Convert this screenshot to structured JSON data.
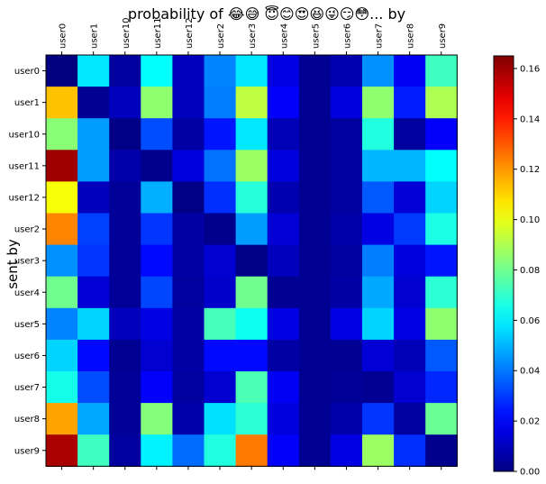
{
  "chart_data": {
    "type": "heatmap",
    "title": "probability of 😂😅 😇😊😍😆😜😏😳... by",
    "ylabel": "sent by",
    "xlabel": "",
    "columns": [
      "user0",
      "user1",
      "user10",
      "user11",
      "user12",
      "user2",
      "user3",
      "user4",
      "user5",
      "user6",
      "user7",
      "user8",
      "user9"
    ],
    "rows": [
      "user0",
      "user1",
      "user10",
      "user11",
      "user12",
      "user2",
      "user3",
      "user4",
      "user5",
      "user6",
      "user7",
      "user8",
      "user9"
    ],
    "values": [
      [
        0.0,
        0.058,
        0.005,
        0.062,
        0.01,
        0.042,
        0.058,
        0.016,
        0.003,
        0.008,
        0.044,
        0.019,
        0.072
      ],
      [
        0.113,
        0.003,
        0.01,
        0.085,
        0.01,
        0.041,
        0.093,
        0.02,
        0.003,
        0.015,
        0.085,
        0.025,
        0.09
      ],
      [
        0.084,
        0.046,
        0.001,
        0.033,
        0.006,
        0.024,
        0.058,
        0.009,
        0.003,
        0.005,
        0.067,
        0.005,
        0.02
      ],
      [
        0.16,
        0.046,
        0.007,
        0.002,
        0.015,
        0.039,
        0.087,
        0.015,
        0.003,
        0.005,
        0.05,
        0.05,
        0.062
      ],
      [
        0.102,
        0.01,
        0.004,
        0.049,
        0.001,
        0.028,
        0.068,
        0.008,
        0.003,
        0.005,
        0.035,
        0.014,
        0.055
      ],
      [
        0.123,
        0.031,
        0.004,
        0.029,
        0.006,
        0.002,
        0.046,
        0.014,
        0.003,
        0.007,
        0.016,
        0.03,
        0.066
      ],
      [
        0.044,
        0.029,
        0.004,
        0.022,
        0.006,
        0.013,
        0.001,
        0.01,
        0.003,
        0.005,
        0.041,
        0.015,
        0.024
      ],
      [
        0.08,
        0.014,
        0.004,
        0.032,
        0.005,
        0.012,
        0.08,
        0.003,
        0.003,
        0.006,
        0.048,
        0.013,
        0.069
      ],
      [
        0.042,
        0.055,
        0.01,
        0.016,
        0.006,
        0.073,
        0.064,
        0.016,
        0.003,
        0.016,
        0.055,
        0.016,
        0.085
      ],
      [
        0.055,
        0.022,
        0.003,
        0.013,
        0.006,
        0.022,
        0.022,
        0.006,
        0.003,
        0.003,
        0.014,
        0.009,
        0.035
      ],
      [
        0.065,
        0.033,
        0.004,
        0.02,
        0.005,
        0.013,
        0.074,
        0.019,
        0.003,
        0.004,
        0.003,
        0.013,
        0.027
      ],
      [
        0.118,
        0.048,
        0.004,
        0.083,
        0.007,
        0.057,
        0.069,
        0.015,
        0.003,
        0.007,
        0.029,
        0.005,
        0.079
      ],
      [
        0.158,
        0.072,
        0.005,
        0.06,
        0.038,
        0.067,
        0.125,
        0.02,
        0.003,
        0.016,
        0.087,
        0.028,
        0.002
      ]
    ],
    "colorbar": {
      "range": [
        0,
        0.165
      ],
      "ticks": [
        "0.00",
        "0.02",
        "0.04",
        "0.06",
        "0.08",
        "0.10",
        "0.12",
        "0.14",
        "0.16"
      ],
      "tick_values": [
        0,
        0.02,
        0.04,
        0.06,
        0.08,
        0.1,
        0.12,
        0.14,
        0.16
      ]
    },
    "colormap": "jet",
    "grid": false
  }
}
